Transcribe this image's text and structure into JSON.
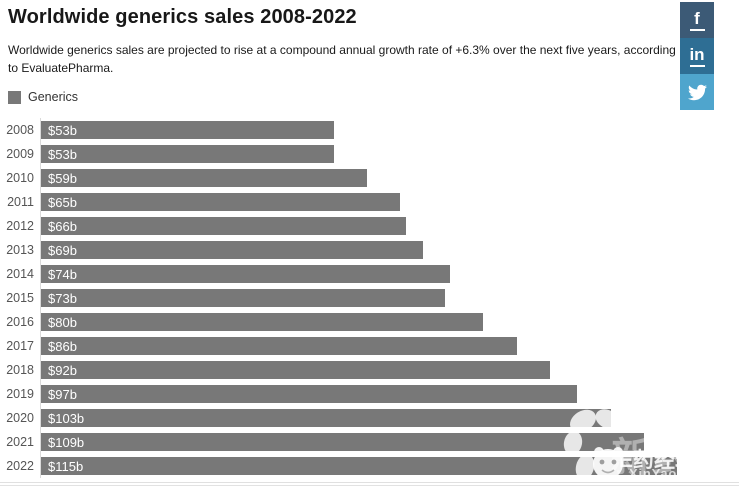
{
  "header": {
    "title": "Worldwide generics sales 2008-2022",
    "subtitle": "Worldwide generics sales are projected to rise at a compound annual growth rate of +6.3% over the next five years, according to EvaluatePharma."
  },
  "legend": {
    "items": [
      {
        "label": "Generics",
        "color": "#787878"
      }
    ]
  },
  "share": {
    "buttons": [
      {
        "id": "facebook",
        "icon": "facebook-f-icon",
        "glyph": "f",
        "color": "#3c5a76"
      },
      {
        "id": "linkedin",
        "icon": "linkedin-in-icon",
        "glyph": "in",
        "color": "#2e6e94"
      },
      {
        "id": "twitter",
        "icon": "twitter-bird-icon",
        "color": "#4fa5cd"
      }
    ]
  },
  "chart_data": {
    "type": "bar",
    "orientation": "horizontal",
    "title": "Worldwide generics sales 2008-2022",
    "series_name": "Generics",
    "categories": [
      "2008",
      "2009",
      "2010",
      "2011",
      "2012",
      "2013",
      "2014",
      "2015",
      "2016",
      "2017",
      "2018",
      "2019",
      "2020",
      "2021",
      "2022"
    ],
    "values": [
      53,
      53,
      59,
      65,
      66,
      69,
      74,
      73,
      80,
      86,
      92,
      97,
      103,
      109,
      115
    ],
    "value_labels": [
      "$53b",
      "$53b",
      "$59b",
      "$65b",
      "$66b",
      "$69b",
      "$74b",
      "$73b",
      "$80b",
      "$86b",
      "$92b",
      "$97b",
      "$103b",
      "$109b",
      "$115b"
    ],
    "unit": "USD billions",
    "xlim": [
      0,
      115
    ],
    "grid": false,
    "legend_position": "top-left",
    "bar_color": "#787878",
    "data_label_color": "#ffffff",
    "category_label_color": "#555555"
  },
  "watermark": {
    "background_text": "新药汇",
    "brand_text": "E药经理人",
    "site_text": "XinYaoHui.com"
  }
}
